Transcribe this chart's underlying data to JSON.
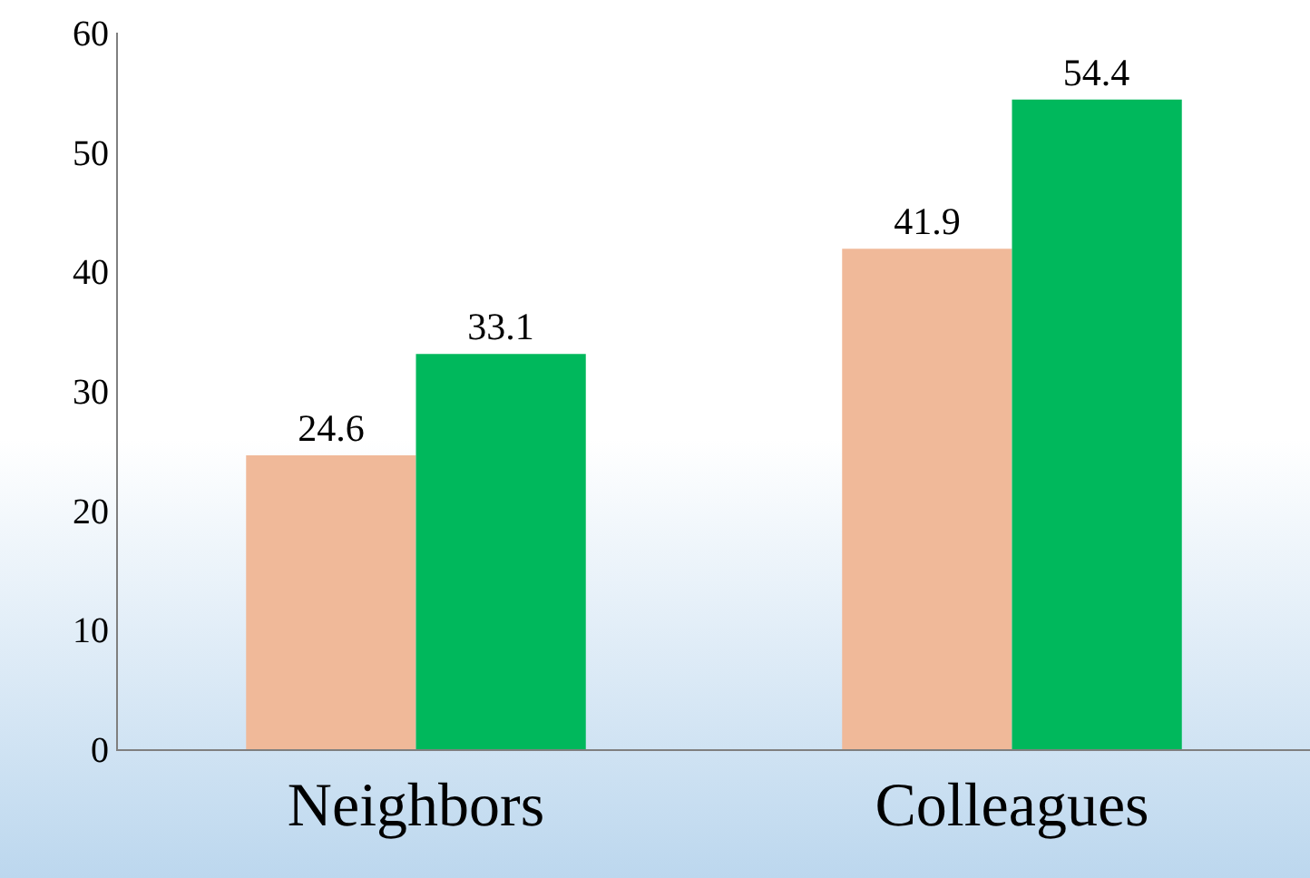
{
  "chart_data": {
    "type": "bar",
    "categories": [
      "Neighbors",
      "Colleagues"
    ],
    "series": [
      {
        "color": "#f0b999",
        "values": [
          24.6,
          41.9
        ]
      },
      {
        "color": "#00b85c",
        "values": [
          33.1,
          54.4
        ]
      }
    ],
    "ylim": [
      0,
      60
    ],
    "yticks": [
      0,
      10,
      20,
      30,
      40,
      50,
      60
    ],
    "grid": false,
    "data_labels": true
  }
}
